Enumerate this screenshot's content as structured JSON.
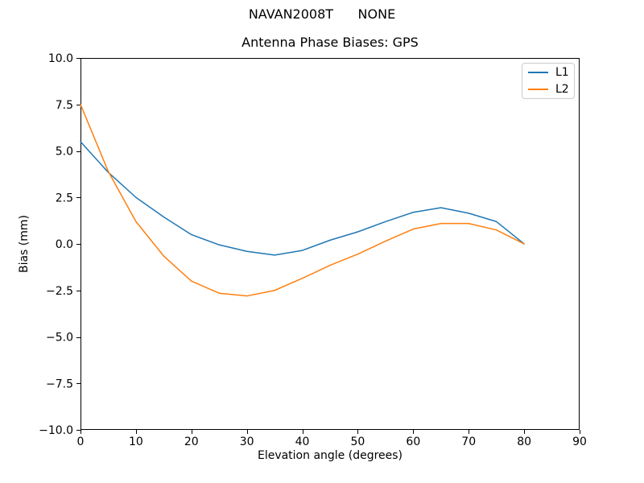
{
  "chart_data": {
    "type": "line",
    "suptitle": "NAVAN2008T      NONE",
    "title": "Antenna Phase Biases: GPS",
    "xlabel": "Elevation angle (degrees)",
    "ylabel": "Bias (mm)",
    "xlim": [
      0,
      90
    ],
    "ylim": [
      -10,
      10
    ],
    "grid": false,
    "x": [
      0,
      5,
      10,
      15,
      20,
      25,
      30,
      35,
      40,
      45,
      50,
      55,
      60,
      65,
      70,
      75,
      80
    ],
    "series": [
      {
        "name": "L1",
        "color": "#1f77b4",
        "values": [
          5.5,
          3.85,
          2.5,
          1.45,
          0.5,
          -0.05,
          -0.4,
          -0.6,
          -0.35,
          0.2,
          0.65,
          1.2,
          1.7,
          1.95,
          1.65,
          1.2,
          0.0
        ]
      },
      {
        "name": "L2",
        "color": "#ff7f0e",
        "values": [
          7.5,
          3.9,
          1.2,
          -0.65,
          -2.0,
          -2.65,
          -2.8,
          -2.5,
          -1.85,
          -1.15,
          -0.55,
          0.15,
          0.8,
          1.1,
          1.1,
          0.75,
          0.0
        ]
      }
    ],
    "xticks": [
      {
        "value": 0,
        "label": "0"
      },
      {
        "value": 10,
        "label": "10"
      },
      {
        "value": 20,
        "label": "20"
      },
      {
        "value": 30,
        "label": "30"
      },
      {
        "value": 40,
        "label": "40"
      },
      {
        "value": 50,
        "label": "50"
      },
      {
        "value": 60,
        "label": "60"
      },
      {
        "value": 70,
        "label": "70"
      },
      {
        "value": 80,
        "label": "80"
      },
      {
        "value": 90,
        "label": "90"
      }
    ],
    "yticks": [
      {
        "value": 10,
        "label": "10.0"
      },
      {
        "value": 7.5,
        "label": "7.5"
      },
      {
        "value": 5,
        "label": "5.0"
      },
      {
        "value": 2.5,
        "label": "2.5"
      },
      {
        "value": 0,
        "label": "0.0"
      },
      {
        "value": -2.5,
        "label": "−2.5"
      },
      {
        "value": -5,
        "label": "−5.0"
      },
      {
        "value": -7.5,
        "label": "−7.5"
      },
      {
        "value": -10,
        "label": "−10.0"
      }
    ],
    "legend": {
      "position": "upper right",
      "entries": [
        "L1",
        "L2"
      ]
    }
  }
}
